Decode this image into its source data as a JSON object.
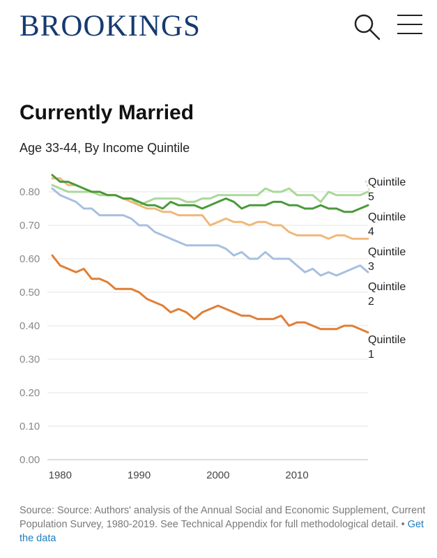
{
  "header": {
    "logo": "BROOKINGS",
    "search_icon": "search-icon",
    "menu_icon": "hamburger-menu-icon",
    "brand_color": "#163a70"
  },
  "chart": {
    "title": "Currently Married",
    "subtitle": "Age 33-44, By Income Quintile"
  },
  "source": {
    "text": "Source: Source: Authors' analysis of the Annual Social and Economic Supplement, Current Population Survey, 1980-2019. See Technical Appendix for full methodological detail.",
    "separator": "•",
    "link_label": "Get the data",
    "link_color": "#1d7fc1"
  },
  "chart_data": {
    "type": "line",
    "title": "Currently Married",
    "subtitle": "Age 33-44, By Income Quintile",
    "xlabel": "",
    "ylabel": "",
    "xlim": [
      1979,
      2019
    ],
    "ylim": [
      0,
      0.85
    ],
    "x_ticks": [
      1980,
      1990,
      2000,
      2010
    ],
    "y_ticks": [
      "0.00",
      "0.10",
      "0.20",
      "0.30",
      "0.40",
      "0.50",
      "0.60",
      "0.70",
      "0.80"
    ],
    "y_tick_values": [
      0,
      0.1,
      0.2,
      0.3,
      0.4,
      0.5,
      0.6,
      0.7,
      0.8
    ],
    "grid": "horizontal",
    "legend": "direct labels at line ends (right)",
    "x": [
      1979,
      1980,
      1981,
      1982,
      1983,
      1984,
      1985,
      1986,
      1987,
      1988,
      1989,
      1990,
      1991,
      1992,
      1993,
      1994,
      1995,
      1996,
      1997,
      1998,
      1999,
      2000,
      2001,
      2002,
      2003,
      2004,
      2005,
      2006,
      2007,
      2008,
      2009,
      2010,
      2011,
      2012,
      2013,
      2014,
      2015,
      2016,
      2017,
      2018,
      2019
    ],
    "series": [
      {
        "name": "Quintile 5",
        "label_lines": [
          "Quintile",
          "5"
        ],
        "color": "#aad89a",
        "dashed_leader": true,
        "values": [
          0.82,
          0.81,
          0.8,
          0.8,
          0.8,
          0.8,
          0.79,
          0.79,
          0.79,
          0.78,
          0.78,
          0.76,
          0.77,
          0.78,
          0.78,
          0.78,
          0.78,
          0.77,
          0.77,
          0.78,
          0.78,
          0.79,
          0.79,
          0.79,
          0.79,
          0.79,
          0.79,
          0.81,
          0.8,
          0.8,
          0.81,
          0.79,
          0.79,
          0.79,
          0.77,
          0.8,
          0.79,
          0.79,
          0.79,
          0.79,
          0.8
        ]
      },
      {
        "name": "Quintile 4",
        "label_lines": [
          "Quintile",
          "4"
        ],
        "color": "#4a9a3a",
        "values": [
          0.85,
          0.83,
          0.83,
          0.82,
          0.81,
          0.8,
          0.8,
          0.79,
          0.79,
          0.78,
          0.78,
          0.77,
          0.76,
          0.76,
          0.75,
          0.77,
          0.76,
          0.76,
          0.76,
          0.75,
          0.76,
          0.77,
          0.78,
          0.77,
          0.75,
          0.76,
          0.76,
          0.76,
          0.77,
          0.77,
          0.76,
          0.76,
          0.75,
          0.75,
          0.76,
          0.75,
          0.75,
          0.74,
          0.74,
          0.75,
          0.76
        ]
      },
      {
        "name": "Quintile 3",
        "label_lines": [
          "Quintile",
          "3"
        ],
        "color": "#f0b87a",
        "values": [
          0.84,
          0.84,
          0.82,
          0.82,
          0.81,
          0.8,
          0.8,
          0.79,
          0.79,
          0.78,
          0.77,
          0.76,
          0.75,
          0.75,
          0.74,
          0.74,
          0.73,
          0.73,
          0.73,
          0.73,
          0.7,
          0.71,
          0.72,
          0.71,
          0.71,
          0.7,
          0.71,
          0.71,
          0.7,
          0.7,
          0.68,
          0.67,
          0.67,
          0.67,
          0.67,
          0.66,
          0.67,
          0.67,
          0.66,
          0.66,
          0.66
        ]
      },
      {
        "name": "Quintile 2",
        "label_lines": [
          "Quintile",
          "2"
        ],
        "color": "#a8bfe0",
        "values": [
          0.81,
          0.79,
          0.78,
          0.77,
          0.75,
          0.75,
          0.73,
          0.73,
          0.73,
          0.73,
          0.72,
          0.7,
          0.7,
          0.68,
          0.67,
          0.66,
          0.65,
          0.64,
          0.64,
          0.64,
          0.64,
          0.64,
          0.63,
          0.61,
          0.62,
          0.6,
          0.6,
          0.62,
          0.6,
          0.6,
          0.6,
          0.58,
          0.56,
          0.57,
          0.55,
          0.56,
          0.55,
          0.56,
          0.57,
          0.58,
          0.56
        ]
      },
      {
        "name": "Quintile 1",
        "label_lines": [
          "Quintile",
          "1"
        ],
        "color": "#e07f35",
        "values": [
          0.61,
          0.58,
          0.57,
          0.56,
          0.57,
          0.54,
          0.54,
          0.53,
          0.51,
          0.51,
          0.51,
          0.5,
          0.48,
          0.47,
          0.46,
          0.44,
          0.45,
          0.44,
          0.42,
          0.44,
          0.45,
          0.46,
          0.45,
          0.44,
          0.43,
          0.43,
          0.42,
          0.42,
          0.42,
          0.43,
          0.4,
          0.41,
          0.41,
          0.4,
          0.39,
          0.39,
          0.39,
          0.4,
          0.4,
          0.39,
          0.38
        ]
      }
    ]
  }
}
